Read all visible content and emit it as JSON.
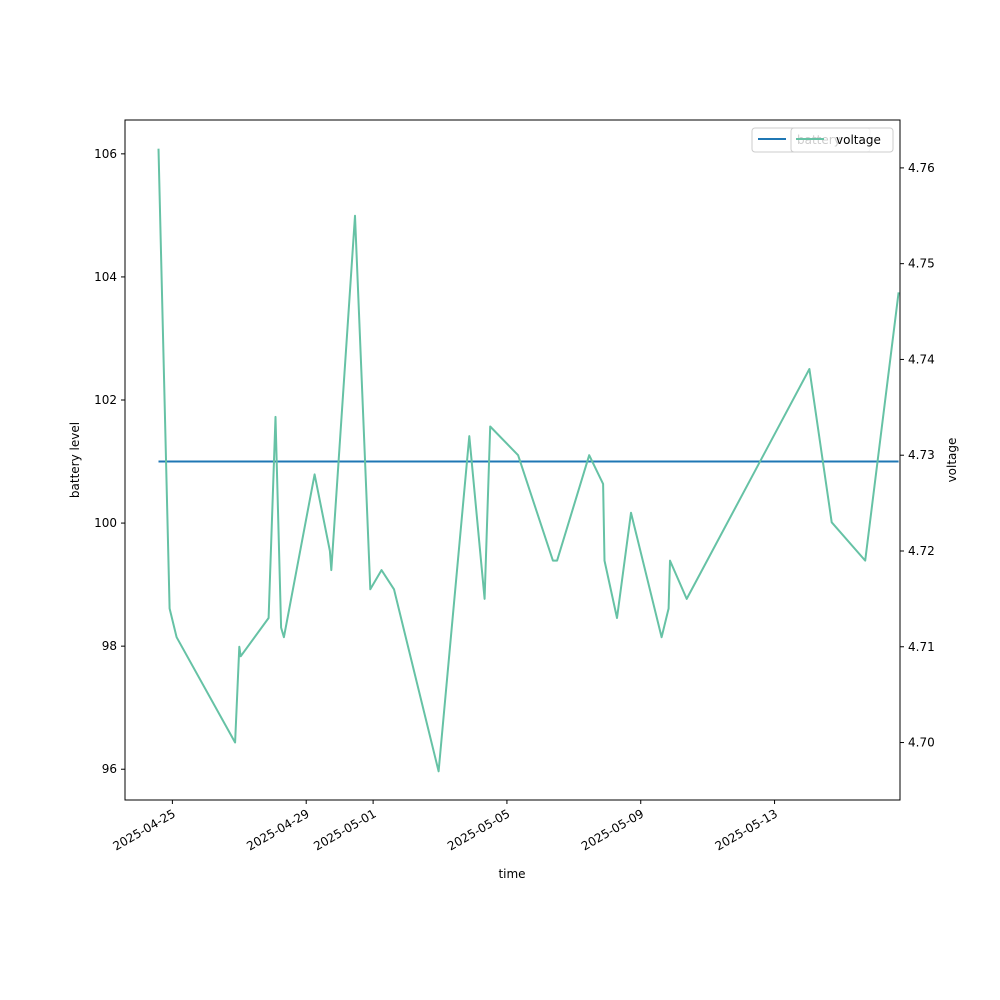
{
  "chart_data": {
    "type": "line",
    "xlabel": "time",
    "ylabel_left": "battery level",
    "ylabel_right": "voltage",
    "x_range": [
      "2025-04-23T14:00",
      "2025-05-16T18:00"
    ],
    "ylim_left": [
      95.5,
      106.55
    ],
    "ylim_right": [
      4.694,
      4.765
    ],
    "x_ticks": [
      "2025-04-25",
      "2025-04-29",
      "2025-05-01",
      "2025-05-05",
      "2025-05-09",
      "2025-05-13"
    ],
    "y_ticks_left": [
      96,
      98,
      100,
      102,
      104,
      106
    ],
    "y_ticks_right": [
      4.7,
      4.71,
      4.72,
      4.73,
      4.74,
      4.75,
      4.76
    ],
    "y_ticks_right_labels": [
      "4.70",
      "4.71",
      "4.72",
      "4.73",
      "4.74",
      "4.75",
      "4.76"
    ],
    "grid": false,
    "legend_position": "top-right",
    "series": [
      {
        "name": "battery",
        "axis": "left",
        "color": "#1f77b4",
        "points": [
          {
            "x": "2025-04-24T14:00",
            "y": 101
          },
          {
            "x": "2025-05-16T17:00",
            "y": 101
          }
        ]
      },
      {
        "name": "voltage",
        "axis": "right",
        "color": "#66c2a5",
        "points": [
          {
            "x": "2025-04-24T14:00",
            "y": 4.762
          },
          {
            "x": "2025-04-24T22:00",
            "y": 4.714
          },
          {
            "x": "2025-04-25T03:00",
            "y": 4.711
          },
          {
            "x": "2025-04-26T21:00",
            "y": 4.7
          },
          {
            "x": "2025-04-27T00:00",
            "y": 4.71
          },
          {
            "x": "2025-04-27T01:00",
            "y": 4.709
          },
          {
            "x": "2025-04-27T21:00",
            "y": 4.713
          },
          {
            "x": "2025-04-28T02:00",
            "y": 4.734
          },
          {
            "x": "2025-04-28T06:00",
            "y": 4.712
          },
          {
            "x": "2025-04-28T08:00",
            "y": 4.711
          },
          {
            "x": "2025-04-29T06:00",
            "y": 4.728
          },
          {
            "x": "2025-04-29T17:00",
            "y": 4.72
          },
          {
            "x": "2025-04-29T18:00",
            "y": 4.718
          },
          {
            "x": "2025-04-30T11:00",
            "y": 4.755
          },
          {
            "x": "2025-04-30T22:00",
            "y": 4.716
          },
          {
            "x": "2025-05-01T06:00",
            "y": 4.718
          },
          {
            "x": "2025-05-01T15:00",
            "y": 4.716
          },
          {
            "x": "2025-05-02T23:00",
            "y": 4.697
          },
          {
            "x": "2025-05-03T21:00",
            "y": 4.732
          },
          {
            "x": "2025-05-04T08:00",
            "y": 4.715
          },
          {
            "x": "2025-05-04T12:00",
            "y": 4.733
          },
          {
            "x": "2025-05-05T08:00",
            "y": 4.73
          },
          {
            "x": "2025-05-06T09:00",
            "y": 4.719
          },
          {
            "x": "2025-05-06T12:00",
            "y": 4.719
          },
          {
            "x": "2025-05-07T11:00",
            "y": 4.73
          },
          {
            "x": "2025-05-07T21:00",
            "y": 4.727
          },
          {
            "x": "2025-05-07T22:00",
            "y": 4.719
          },
          {
            "x": "2025-05-08T07:00",
            "y": 4.713
          },
          {
            "x": "2025-05-08T17:00",
            "y": 4.724
          },
          {
            "x": "2025-05-09T15:00",
            "y": 4.711
          },
          {
            "x": "2025-05-09T20:00",
            "y": 4.714
          },
          {
            "x": "2025-05-09T21:00",
            "y": 4.719
          },
          {
            "x": "2025-05-10T09:00",
            "y": 4.715
          },
          {
            "x": "2025-05-14T01:00",
            "y": 4.739
          },
          {
            "x": "2025-05-14T17:00",
            "y": 4.723
          },
          {
            "x": "2025-05-15T17:00",
            "y": 4.719
          },
          {
            "x": "2025-05-16T17:00",
            "y": 4.747
          }
        ]
      }
    ]
  }
}
